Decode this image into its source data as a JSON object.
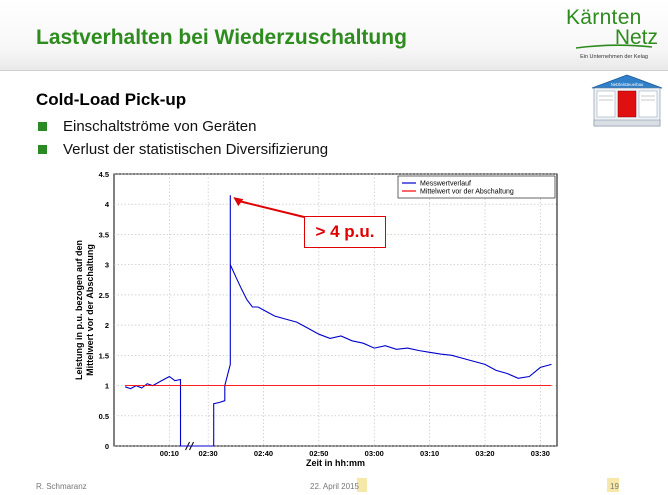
{
  "slide": {
    "title": "Lastverhalten bei Wiederzuschaltung",
    "subtitle": "Cold-Load Pick-up",
    "bullets": [
      "Einschaltströme von Geräten",
      "Verlust der statistischen Diversifizierung"
    ],
    "callout": "> 4 p.u.",
    "logo_line1": "Kärnten",
    "logo_line2": "Netz",
    "logo_sub": "Ein Unternehmen der Kelag",
    "house_title": "Netzleitsteuerbau",
    "footer_author": "R. Schmaranz",
    "footer_date": "22. April 2015",
    "page_number": "19",
    "colors": {
      "title_green": "#2e8b1e",
      "accent_red": "#e00000",
      "series_blue": "#0000cc",
      "mean_red": "#ff0000"
    }
  },
  "chart_data": {
    "type": "line",
    "xlabel": "Zeit in hh:mm",
    "ylabel_line1": "Leistung in p.u. bezogen auf den",
    "ylabel_line2": "Mittelwert vor der Abschaltung",
    "ylim": [
      0,
      4.5
    ],
    "yticks": [
      "0",
      "0.5",
      "1",
      "1.5",
      "2",
      "2.5",
      "3",
      "3.5",
      "4",
      "4.5"
    ],
    "xticks": [
      "00:10",
      "02:30",
      "02:40",
      "02:50",
      "03:00",
      "03:10",
      "03:20",
      "03:30"
    ],
    "axis_break_after": "00:10",
    "grid": true,
    "legend_position": "top-right",
    "series": [
      {
        "name": "Messwertverlauf",
        "color": "#0000cc",
        "points": [
          [
            "00:02",
            0.98
          ],
          [
            "00:03",
            0.95
          ],
          [
            "00:04",
            1.0
          ],
          [
            "00:05",
            0.96
          ],
          [
            "00:06",
            1.03
          ],
          [
            "00:07",
            1.0
          ],
          [
            "00:08",
            1.05
          ],
          [
            "00:09",
            1.1
          ],
          [
            "00:10",
            1.15
          ],
          [
            "00:11",
            1.08
          ],
          [
            "00:12",
            1.1
          ],
          [
            "00:12",
            0.0
          ],
          [
            "02:31",
            0.0
          ],
          [
            "02:31",
            0.7
          ],
          [
            "02:32",
            0.72
          ],
          [
            "02:33",
            0.75
          ],
          [
            "02:33",
            1.0
          ],
          [
            "02:34",
            1.35
          ],
          [
            "02:34",
            4.15
          ],
          [
            "02:34",
            3.0
          ],
          [
            "02:35",
            2.8
          ],
          [
            "02:36",
            2.6
          ],
          [
            "02:37",
            2.42
          ],
          [
            "02:38",
            2.3
          ],
          [
            "02:39",
            2.3
          ],
          [
            "02:40",
            2.25
          ],
          [
            "02:42",
            2.15
          ],
          [
            "02:44",
            2.1
          ],
          [
            "02:46",
            2.05
          ],
          [
            "02:48",
            1.95
          ],
          [
            "02:50",
            1.85
          ],
          [
            "02:52",
            1.78
          ],
          [
            "02:54",
            1.82
          ],
          [
            "02:56",
            1.74
          ],
          [
            "02:58",
            1.7
          ],
          [
            "03:00",
            1.62
          ],
          [
            "03:02",
            1.66
          ],
          [
            "03:04",
            1.6
          ],
          [
            "03:06",
            1.62
          ],
          [
            "03:08",
            1.58
          ],
          [
            "03:10",
            1.55
          ],
          [
            "03:12",
            1.52
          ],
          [
            "03:14",
            1.5
          ],
          [
            "03:16",
            1.45
          ],
          [
            "03:18",
            1.4
          ],
          [
            "03:20",
            1.35
          ],
          [
            "03:22",
            1.25
          ],
          [
            "03:24",
            1.2
          ],
          [
            "03:26",
            1.12
          ],
          [
            "03:28",
            1.15
          ],
          [
            "03:30",
            1.3
          ],
          [
            "03:32",
            1.35
          ]
        ]
      },
      {
        "name": "Mittelwert vor der Abschaltung",
        "color": "#ff0000",
        "points": [
          [
            "00:02",
            1.0
          ],
          [
            "03:32",
            1.0
          ]
        ]
      }
    ]
  }
}
